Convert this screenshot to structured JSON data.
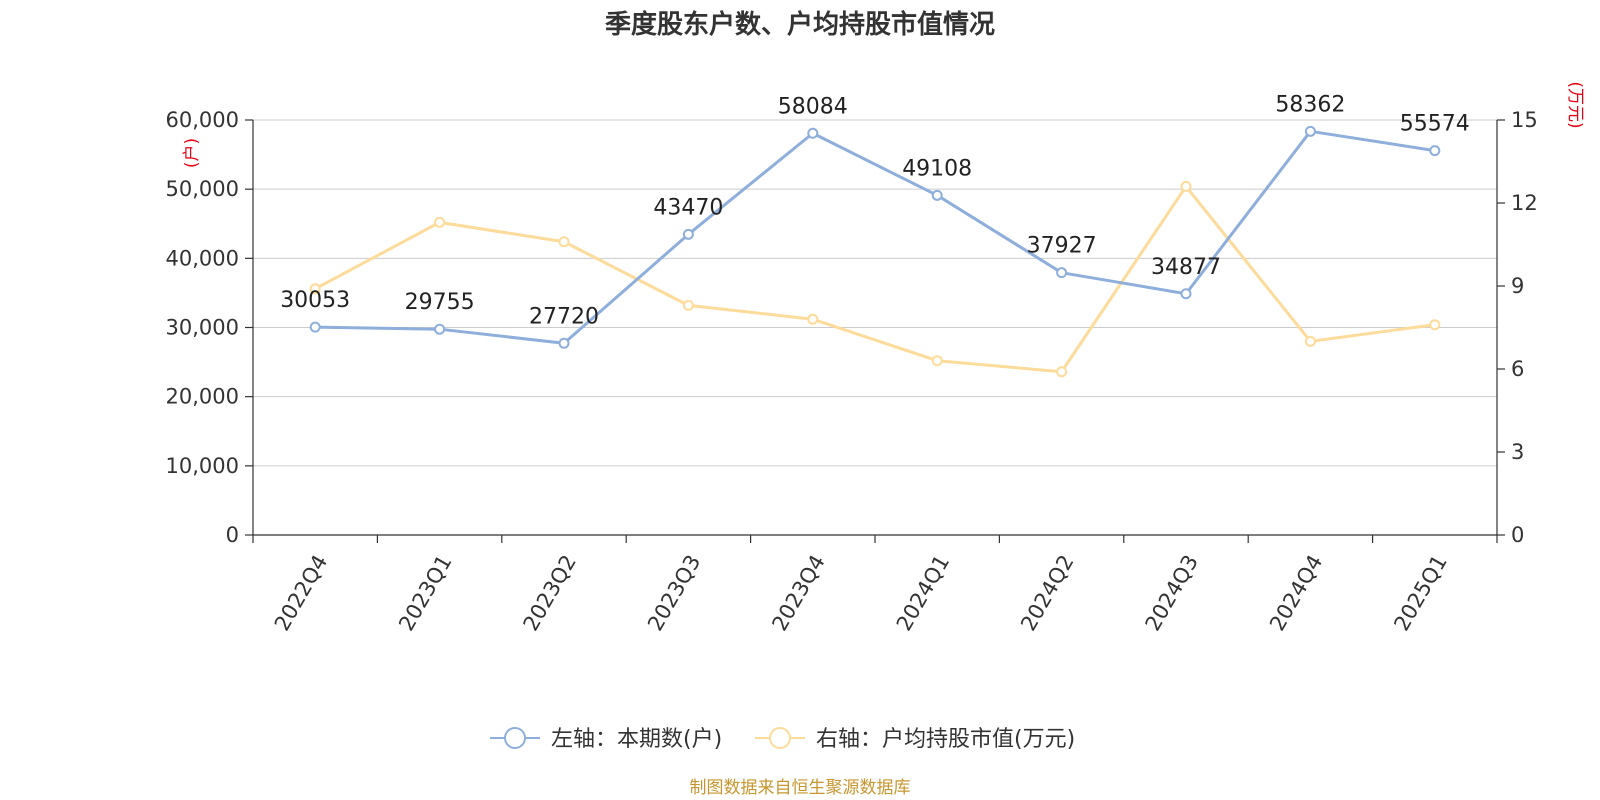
{
  "chart_data": {
    "type": "line",
    "title": "季度股东户数、户均持股市值情况",
    "categories": [
      "2022Q4",
      "2023Q1",
      "2023Q2",
      "2023Q3",
      "2023Q4",
      "2024Q1",
      "2024Q2",
      "2024Q3",
      "2024Q4",
      "2025Q1"
    ],
    "series": [
      {
        "name": "左轴：本期数(户)",
        "axis": "left",
        "color": "#8eaedb",
        "values": [
          30053,
          29755,
          27720,
          43470,
          58084,
          49108,
          37927,
          34877,
          58362,
          55574
        ],
        "labels": [
          "30053",
          "29755",
          "27720",
          "43470",
          "58084",
          "49108",
          "37927",
          "34877",
          "58362",
          "55574"
        ]
      },
      {
        "name": "右轴：户均持股市值(万元)",
        "axis": "right",
        "color": "#fddb9a",
        "values": [
          8.9,
          11.3,
          10.6,
          8.3,
          7.8,
          6.3,
          5.9,
          12.6,
          7.0,
          7.6
        ]
      }
    ],
    "left_axis": {
      "unit": "(户)",
      "ylim": [
        0,
        60000
      ],
      "ticks": [
        0,
        10000,
        20000,
        30000,
        40000,
        50000,
        60000
      ],
      "tick_labels": [
        "0",
        "10,000",
        "20,000",
        "30,000",
        "40,000",
        "50,000",
        "60,000"
      ]
    },
    "right_axis": {
      "unit": "(万元)",
      "ylim": [
        0,
        15
      ],
      "ticks": [
        0,
        3,
        6,
        9,
        12,
        15
      ],
      "tick_labels": [
        "0",
        "3",
        "6",
        "9",
        "12",
        "15"
      ]
    },
    "grid": true,
    "legend_position": "bottom-center",
    "source": "制图数据来自恒生聚源数据库"
  }
}
